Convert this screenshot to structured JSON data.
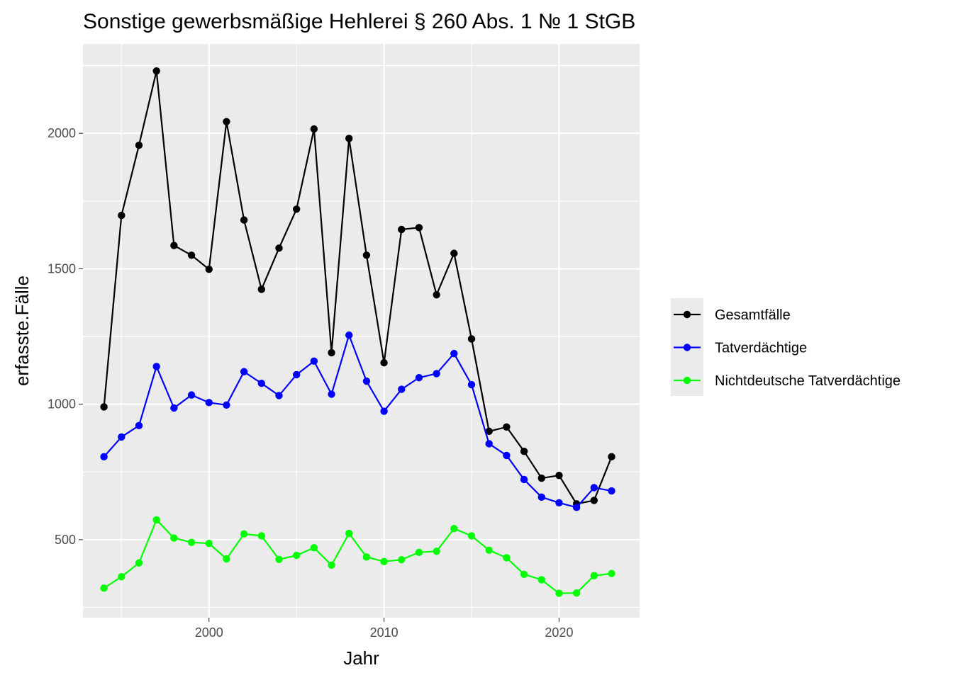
{
  "chart_data": {
    "type": "line",
    "title": "Sonstige gewerbsmäßige Hehlerei § 260 Abs. 1 № 1 StGB",
    "xlabel": "Jahr",
    "ylabel": "erfasste.Fälle",
    "xlim": [
      1992.8,
      2024.6
    ],
    "ylim": [
      212,
      2330
    ],
    "x_ticks": [
      2000,
      2010,
      2020
    ],
    "y_ticks": [
      500,
      1000,
      1500,
      2000
    ],
    "grid": true,
    "legend_position": "right",
    "x": [
      1994,
      1995,
      1996,
      1997,
      1998,
      1999,
      2000,
      2001,
      2002,
      2003,
      2004,
      2005,
      2006,
      2007,
      2008,
      2009,
      2010,
      2011,
      2012,
      2013,
      2014,
      2015,
      2016,
      2017,
      2018,
      2019,
      2020,
      2021,
      2022,
      2023
    ],
    "series": [
      {
        "name": "Gesamtfälle",
        "color": "#000000",
        "values": [
          990,
          1697,
          1956,
          2230,
          1586,
          1550,
          1498,
          2043,
          1680,
          1424,
          1576,
          1720,
          2016,
          1190,
          1981,
          1550,
          1153,
          1645,
          1652,
          1404,
          1557,
          1241,
          900,
          916,
          826,
          727,
          737,
          632,
          645,
          806
        ]
      },
      {
        "name": "Tatverdächtige",
        "color": "#0000ff",
        "values": [
          806,
          879,
          921,
          1139,
          986,
          1034,
          1006,
          997,
          1120,
          1077,
          1032,
          1109,
          1159,
          1037,
          1255,
          1085,
          974,
          1055,
          1098,
          1113,
          1187,
          1072,
          854,
          811,
          722,
          657,
          636,
          619,
          692,
          680
        ]
      },
      {
        "name": "Nichtdeutsche Tatverdächtige",
        "color": "#00ff00",
        "values": [
          321,
          363,
          414,
          573,
          506,
          490,
          486,
          429,
          521,
          514,
          427,
          442,
          470,
          406,
          523,
          436,
          419,
          426,
          453,
          457,
          541,
          514,
          461,
          433,
          372,
          352,
          302,
          303,
          367,
          375
        ]
      }
    ]
  }
}
